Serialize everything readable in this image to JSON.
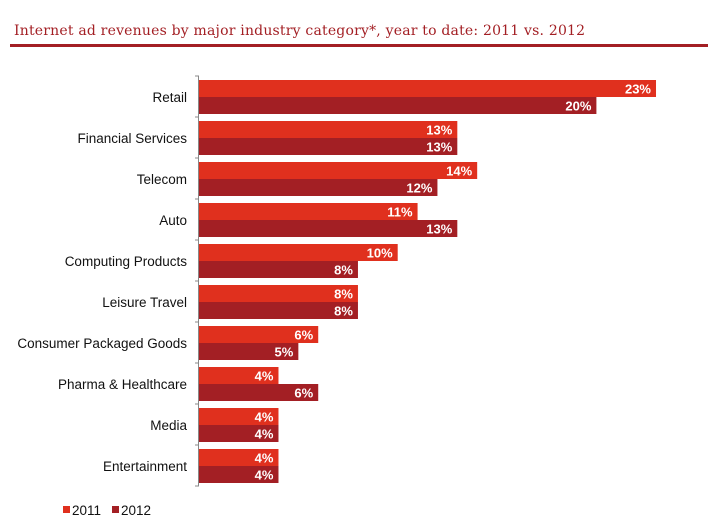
{
  "chart_data": {
    "type": "bar",
    "orientation": "horizontal",
    "title": "Internet ad revenues by major industry category*, year to date: 2011 vs. 2012",
    "categories": [
      "Retail",
      "Financial Services",
      "Telecom",
      "Auto",
      "Computing Products",
      "Leisure Travel",
      "Consumer Packaged Goods",
      "Pharma & Healthcare",
      "Media",
      "Entertainment"
    ],
    "series": [
      {
        "name": "2011",
        "color": "#e0301e",
        "values": [
          23,
          13,
          14,
          11,
          10,
          8,
          6,
          4,
          4,
          4
        ]
      },
      {
        "name": "2012",
        "color": "#a31f24",
        "values": [
          20,
          13,
          12,
          13,
          8,
          8,
          5,
          6,
          4,
          4
        ]
      }
    ],
    "value_suffix": "%",
    "xlim": [
      0,
      25
    ],
    "grid": false,
    "legend": "bottom-left"
  }
}
